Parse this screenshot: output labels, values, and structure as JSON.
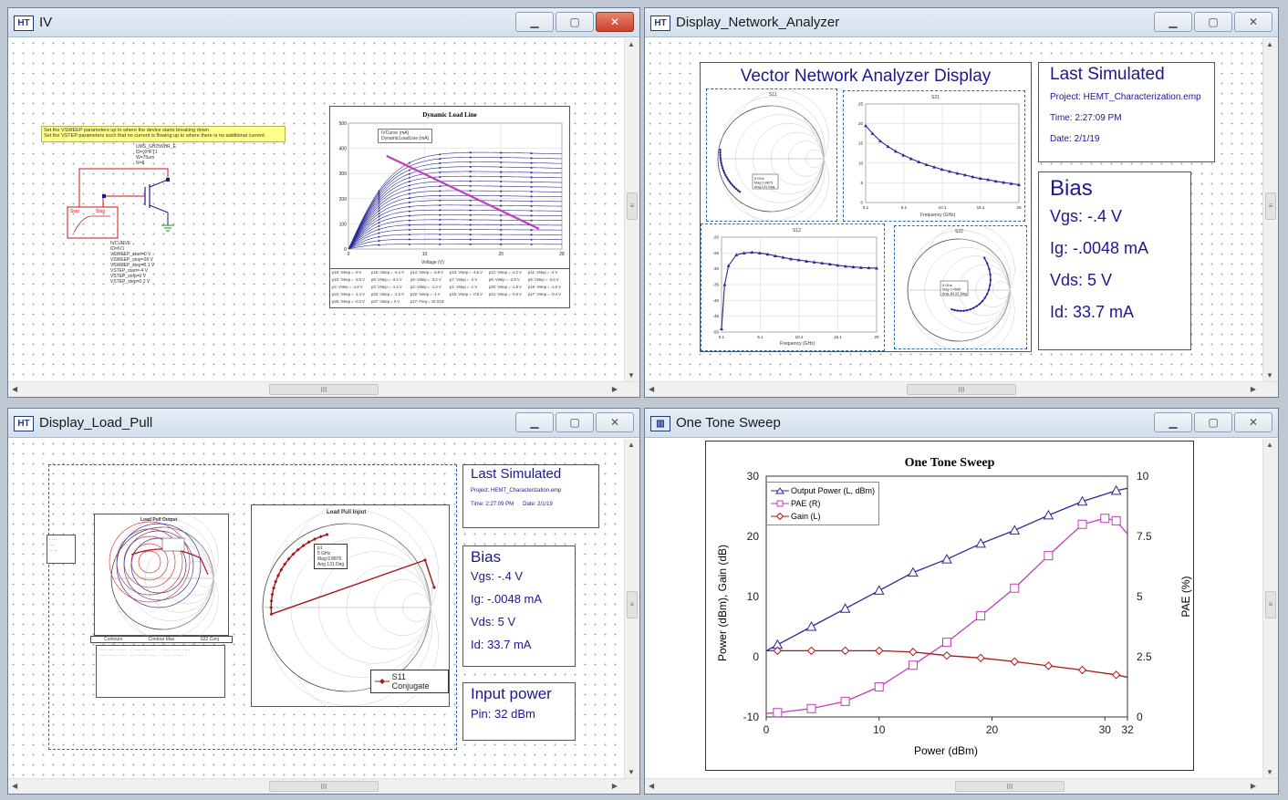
{
  "windows": {
    "iv": {
      "title": "IV",
      "note_lines": [
        "Set the VSWEEP parameters up to where the device starts breaking down",
        "Set the VSTEP parameters such that no current is flowing up to where there is no additional current"
      ],
      "device_params": [
        "UMS_GH25NHR_E",
        "ID=XHFT1",
        "W=75um",
        "N=8"
      ],
      "sweep_labels": [
        "Swp",
        "Step"
      ],
      "curve_params": [
        "IVCURVE",
        "ID=IV1",
        "VSWEEP_start=0 V",
        "VSWEEP_stop=28 V",
        "VSWEEP_step=0.1 V",
        "VSTEP_start=-4 V",
        "VSTEP_stop=0 V",
        "VSTEP_step=0.2 V"
      ],
      "chart_data": {
        "type": "line",
        "title": "Dynamic Load Line",
        "xlabel": "Voltage (V)",
        "x_ticks": [
          "0",
          "10",
          "20",
          "28"
        ],
        "y_ticks": [
          "500",
          "400",
          "300",
          "200",
          "100",
          "0"
        ],
        "xlim": [
          0,
          28
        ],
        "ylim": [
          0,
          500
        ],
        "legend": [
          "IVCurve (mA)",
          "DynamicLoadLine (mA)"
        ],
        "levels": [
          400,
          380,
          360,
          340,
          320,
          300,
          280,
          260,
          240,
          220,
          200,
          180,
          160,
          140,
          120,
          100,
          80,
          60,
          40,
          20
        ],
        "load_line": {
          "x": [
            5,
            25
          ],
          "y": [
            370,
            80
          ]
        },
        "table_rows": [
          [
            "p18: Vstep = -8 V",
            "p16: Vstep = -4.4 V",
            "p14: Vstep = -4.8 V",
            "p13: Vstep = -4.6 V",
            "p12: Vstep = -4.2 V",
            "p11: Vstep = -4 V"
          ],
          [
            "p10: Vstep = -3.8 V",
            "p9: Vstep = -3.4 V",
            "p8: Vstep = -3.2 V",
            "p7: Vstep = -3 V",
            "p6: Vstep = -2.8 V",
            "p5: Vstep = -2.6 V"
          ],
          [
            "p4: Vstep = -1.8 V",
            "p3: Vstep = -1.4 V",
            "p2: Vstep = -1.2 V",
            "p1: Vstep = -1 V",
            "p20: Vstep = -1.8 V",
            "p19: Vstep = -1.6 V"
          ],
          [
            "p24: Vstep = -1.4 V",
            "p23: Vstep = -1.2 V",
            "p22: Vstep = -1 V",
            "p15: Vstep = -0.8 V",
            "p14: Vstep = -0.6 V",
            "p17: Vstep = -0.4 V"
          ],
          [
            "p26: Vstep = -0.2 V",
            "p27: Vstep = 0 V",
            "p17: Freq = 10 GHz",
            "",
            "",
            ""
          ]
        ]
      }
    },
    "vna": {
      "title": "Display_Network_Analyzer",
      "heading": "Vector Network Analyzer Display",
      "last_sim": {
        "title": "Last Simulated",
        "project": "Project: HEMT_Characterization.emp",
        "time": "Time: 2:27:09 PM",
        "date": "Date: 2/1/19"
      },
      "bias": {
        "title": "Bias",
        "vgs": "Vgs: -.4 V",
        "ig": "Ig: -.0048 mA",
        "vds": "Vds: 5 V",
        "id": "Id: 33.7 mA"
      },
      "charts": {
        "s11": {
          "title": "S11",
          "marker": [
            "5 GHz",
            "Mag 0.8875",
            "Ang 131 Deg"
          ]
        },
        "s21": {
          "title": "S21",
          "xlabel": "Frequency (GHz)",
          "x_ticks": [
            "0.1",
            "5.1",
            "10.1",
            "15.1",
            "20"
          ],
          "y_ticks": [
            "25",
            "20",
            "15",
            "10",
            "5",
            "0"
          ],
          "xlim": [
            0.1,
            20
          ],
          "ylim": [
            0,
            25
          ],
          "x": [
            0.1,
            1,
            2,
            3,
            4,
            5,
            6,
            7,
            8,
            9,
            10,
            11,
            12,
            13,
            14,
            15,
            16,
            17,
            18,
            19,
            20
          ],
          "y": [
            19.5,
            17.5,
            15.6,
            14.2,
            13,
            12,
            11.1,
            10.3,
            9.6,
            9,
            8.4,
            7.9,
            7.4,
            7,
            6.5,
            6.1,
            5.8,
            5.4,
            5.1,
            4.8,
            4.5
          ]
        },
        "s12": {
          "title": "S12",
          "xlabel": "Frequency (GHz)",
          "x_ticks": [
            "0.1",
            "5.1",
            "10.1",
            "15.1",
            "20"
          ],
          "y_ticks": [
            "-20",
            "-25",
            "-30",
            "-35",
            "-40",
            "-45",
            "-50"
          ],
          "xlim": [
            0.1,
            20
          ],
          "ylim": [
            -50,
            -20
          ],
          "x": [
            0.1,
            0.5,
            1,
            2,
            3,
            4,
            5,
            6,
            7,
            8,
            9,
            10,
            11,
            12,
            13,
            14,
            15,
            16,
            17,
            18,
            19,
            20
          ],
          "y": [
            -49,
            -35,
            -29,
            -25.6,
            -25,
            -24.8,
            -25,
            -25.4,
            -25.9,
            -26.4,
            -26.9,
            -27.2,
            -27.6,
            -27.9,
            -28.2,
            -28.5,
            -28.9,
            -29.2,
            -29.4,
            -29.6,
            -29.7,
            -29.8
          ]
        },
        "s22": {
          "title": "S22",
          "marker": [
            "5 GHz",
            "Mag 0.4585",
            "Ang -81.57 Deg"
          ]
        }
      }
    },
    "loadpull": {
      "title": "Display_Load_Pull",
      "output_title": "Load Pull Output",
      "input_title": "Load Pull Input",
      "input_marker": [
        "p1",
        "5 GHz",
        "Mag 0.8875",
        "Ang 131 Deg"
      ],
      "legend_label": "S11 Conjugate",
      "output_legend": [
        "Contours",
        "Contour Max",
        "S22 Conj"
      ],
      "last_sim": {
        "title": "Last Simulated",
        "project": "Project: HEMT_Characterization.emp",
        "time": "Time: 2:27:09 PM",
        "date": "Date: 2/1/19"
      },
      "bias": {
        "title": "Bias",
        "vgs": "Vgs: -.4 V",
        "ig": "Ig: -.0048 mA",
        "vds": "Vds: 5 V",
        "id": "Id: 33.7 mA"
      },
      "input_power": {
        "title": "Input power",
        "pin": "Pin: 32 dBm"
      }
    },
    "onetone": {
      "title": "One Tone Sweep",
      "chart_data": {
        "type": "line",
        "title": "One Tone Sweep",
        "xlabel": "Power (dBm)",
        "ylabel_left": "Power (dBm), Gain (dB)",
        "ylabel_right": "PAE (%)",
        "x_ticks": [
          "0",
          "10",
          "20",
          "30",
          "32"
        ],
        "y_ticks_left": [
          "30",
          "20",
          "10",
          "0",
          "-10"
        ],
        "y_ticks_right": [
          "10",
          "7.5",
          "5",
          "2.5",
          "0"
        ],
        "xlim": [
          0,
          32
        ],
        "ylim_left": [
          -10,
          30
        ],
        "ylim_right": [
          0,
          10
        ],
        "legend_position": "top-left",
        "series": [
          {
            "name": "Output Power (L, dBm)",
            "axis": "left",
            "color": "#2a2a9a",
            "marker": "triangle",
            "x": [
              0,
              1,
              4,
              7,
              10,
              13,
              16,
              19,
              22,
              25,
              28,
              31,
              32
            ],
            "y": [
              1,
              2,
              5,
              8,
              11,
              14,
              16.2,
              18.8,
              21,
              23.5,
              25.8,
              27.6,
              28
            ]
          },
          {
            "name": "PAE (R)",
            "axis": "right",
            "color": "#c03cc0",
            "marker": "square",
            "x": [
              0,
              1,
              4,
              7,
              10,
              13,
              16,
              19,
              22,
              25,
              28,
              30,
              31,
              32
            ],
            "y": [
              0.15,
              0.18,
              0.35,
              0.65,
              1.25,
              2.15,
              3.1,
              4.2,
              5.35,
              6.7,
              8,
              8.25,
              8.15,
              7.6
            ]
          },
          {
            "name": "Gain (L)",
            "axis": "left",
            "color": "#a81818",
            "marker": "diamond",
            "x": [
              0,
              1,
              4,
              7,
              10,
              13,
              16,
              19,
              22,
              25,
              28,
              31,
              32
            ],
            "y": [
              1,
              1,
              1,
              1,
              1,
              0.8,
              0.2,
              -0.2,
              -0.8,
              -1.5,
              -2.2,
              -3,
              -3.4
            ]
          }
        ]
      }
    }
  },
  "colors": {
    "navy_text": "#1c1890",
    "s11_trace": "#2a2a9a",
    "conj_trace": "#a81818"
  }
}
